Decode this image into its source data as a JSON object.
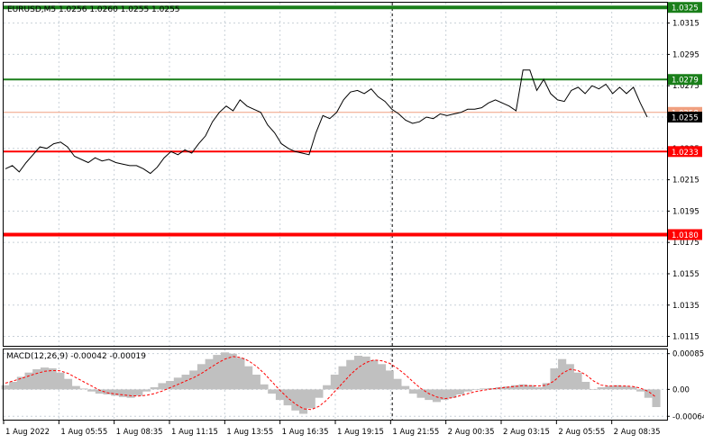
{
  "header": {
    "symbol_line": "EURUSD,M5  1.0256 1.0260 1.0255 1.0255"
  },
  "macd_label": "MACD(12,26,9) -0.00042 -0.00019",
  "colors": {
    "price_line": "#000000",
    "resistance_line": "#1a7f1a",
    "support_line": "#ff0000",
    "current_price_line": "#f0a080",
    "histogram": "#c0c0c0",
    "signal_line": "#ff0000",
    "grid": "#c8d0d8",
    "time_marker": "#000000",
    "price_tag_bg": "#000000"
  },
  "chart_data": [
    {
      "type": "line",
      "title": "EURUSD,M5",
      "x_tick_labels": [
        "1 Aug 2022",
        "1 Aug 05:55",
        "1 Aug 08:35",
        "1 Aug 11:15",
        "1 Aug 13:55",
        "1 Aug 16:35",
        "1 Aug 19:15",
        "1 Aug 21:55",
        "2 Aug 00:35",
        "2 Aug 03:15",
        "2 Aug 05:55",
        "2 Aug 08:35"
      ],
      "y_tick_labels": [
        "1.0315",
        "1.0295",
        "1.0275",
        "1.0255",
        "1.0235",
        "1.0215",
        "1.0195",
        "1.0175",
        "1.0155",
        "1.0135",
        "1.0115"
      ],
      "ylim": [
        1.0109,
        1.0328
      ],
      "grid": true,
      "horizontal_levels": [
        {
          "label": "1.0325",
          "value": 1.0325,
          "role": "resistance",
          "color": "#1a7f1a"
        },
        {
          "label": "1.0279",
          "value": 1.0279,
          "role": "resistance",
          "color": "#1a7f1a"
        },
        {
          "label": "1.0258",
          "value": 1.0258,
          "role": "current",
          "color": "#f0a080"
        },
        {
          "label": "1.0233",
          "value": 1.0233,
          "role": "support",
          "color": "#ff0000"
        },
        {
          "label": "1.0180",
          "value": 1.018,
          "role": "support",
          "color": "#ff0000"
        }
      ],
      "current_price_label": "1.0255",
      "vertical_marker_at": "1 Aug 21:55",
      "series": [
        {
          "values": [
            1.0222,
            1.0224,
            1.022,
            1.0226,
            1.0231,
            1.0236,
            1.0235,
            1.0238,
            1.0239,
            1.0236,
            1.023,
            1.0228,
            1.0226,
            1.0229,
            1.0227,
            1.0228,
            1.0226,
            1.0225,
            1.0224,
            1.0224,
            1.0222,
            1.0219,
            1.0223,
            1.0229,
            1.0233,
            1.0231,
            1.0234,
            1.0232,
            1.0238,
            1.0243,
            1.0252,
            1.0258,
            1.0262,
            1.0259,
            1.0266,
            1.0262,
            1.026,
            1.0258,
            1.025,
            1.0245,
            1.0238,
            1.0235,
            1.0233,
            1.0232,
            1.0231,
            1.0245,
            1.0256,
            1.0254,
            1.0258,
            1.0266,
            1.0271,
            1.0272,
            1.027,
            1.0273,
            1.0268,
            1.0265,
            1.026,
            1.0257,
            1.0253,
            1.0251,
            1.0252,
            1.0255,
            1.0254,
            1.0257,
            1.0256,
            1.0257,
            1.0258,
            1.026,
            1.026,
            1.0261,
            1.0264,
            1.0266,
            1.0264,
            1.0262,
            1.0259,
            1.0285,
            1.0285,
            1.0272,
            1.0279,
            1.027,
            1.0266,
            1.0265,
            1.0272,
            1.0274,
            1.027,
            1.0275,
            1.0273,
            1.0276,
            1.027,
            1.0274,
            1.027,
            1.0274,
            1.0264,
            1.0255
          ]
        }
      ]
    },
    {
      "type": "area",
      "title": "MACD(12,26,9)",
      "y_tick_labels": [
        "0.00085",
        "0.00",
        "-0.00064"
      ],
      "ylim": [
        -0.00072,
        0.00095
      ],
      "grid": true,
      "series": [
        {
          "values": [
            0.0001,
            0.00018,
            0.0003,
            0.0004,
            0.00048,
            0.00052,
            0.0005,
            0.0004,
            0.00025,
            8e-05,
            2e-05,
            -5e-05,
            -0.0001,
            -0.00012,
            -0.00015,
            -0.00018,
            -0.0002,
            -0.00015,
            -5e-05,
            5e-05,
            0.00015,
            0.0002,
            0.00028,
            0.00035,
            0.00045,
            0.0006,
            0.00072,
            0.00082,
            0.00088,
            0.00085,
            0.00075,
            0.00055,
            0.00035,
            0.00012,
            -0.0001,
            -0.00025,
            -0.00038,
            -0.0005,
            -0.00058,
            -0.00045,
            -0.0002,
            0.0001,
            0.00035,
            0.00055,
            0.0007,
            0.0008,
            0.00078,
            0.0007,
            0.0006,
            0.00045,
            0.00025,
            8e-05,
            -0.0001,
            -0.0002,
            -0.00025,
            -0.0003,
            -0.00025,
            -0.0002,
            -0.00012,
            -5e-05,
            0.0,
            2e-05,
            3e-05,
            5e-05,
            7e-05,
            0.0001,
            0.00012,
            0.0001,
            5e-05,
            0.00015,
            0.0005,
            0.00072,
            0.0006,
            0.0004,
            0.00018,
            0.0,
            5e-05,
            8e-05,
            0.0001,
            8e-05,
            6e-05,
            -5e-05,
            -0.0002,
            -0.00042
          ]
        },
        {
          "values": [
            0.00015,
            0.0002,
            0.00026,
            0.00032,
            0.00038,
            0.00043,
            0.00045,
            0.00044,
            0.00038,
            0.00028,
            0.00018,
            8e-05,
            -2e-05,
            -8e-05,
            -0.00011,
            -0.00013,
            -0.00015,
            -0.00016,
            -0.00014,
            -0.0001,
            -4e-05,
            4e-05,
            0.00012,
            0.0002,
            0.00028,
            0.00038,
            0.0005,
            0.00062,
            0.00072,
            0.00078,
            0.00076,
            0.00068,
            0.00055,
            0.00038,
            0.00018,
            -2e-05,
            -0.0002,
            -0.00035,
            -0.00046,
            -0.00048,
            -0.0004,
            -0.00025,
            -5e-05,
            0.00015,
            0.00035,
            0.00052,
            0.00064,
            0.0007,
            0.00068,
            0.00062,
            0.0005,
            0.00035,
            0.00018,
            2e-05,
            -0.0001,
            -0.00018,
            -0.00022,
            -0.0002,
            -0.00015,
            -0.0001,
            -5e-05,
            -2e-05,
            1e-05,
            3e-05,
            5e-05,
            7e-05,
            9e-05,
            9e-05,
            8e-05,
            0.0001,
            0.0002,
            0.00038,
            0.00048,
            0.00045,
            0.00035,
            0.0002,
            0.0001,
            8e-05,
            8e-05,
            8e-05,
            7e-05,
            3e-05,
            -5e-05,
            -0.00019
          ]
        }
      ]
    }
  ]
}
